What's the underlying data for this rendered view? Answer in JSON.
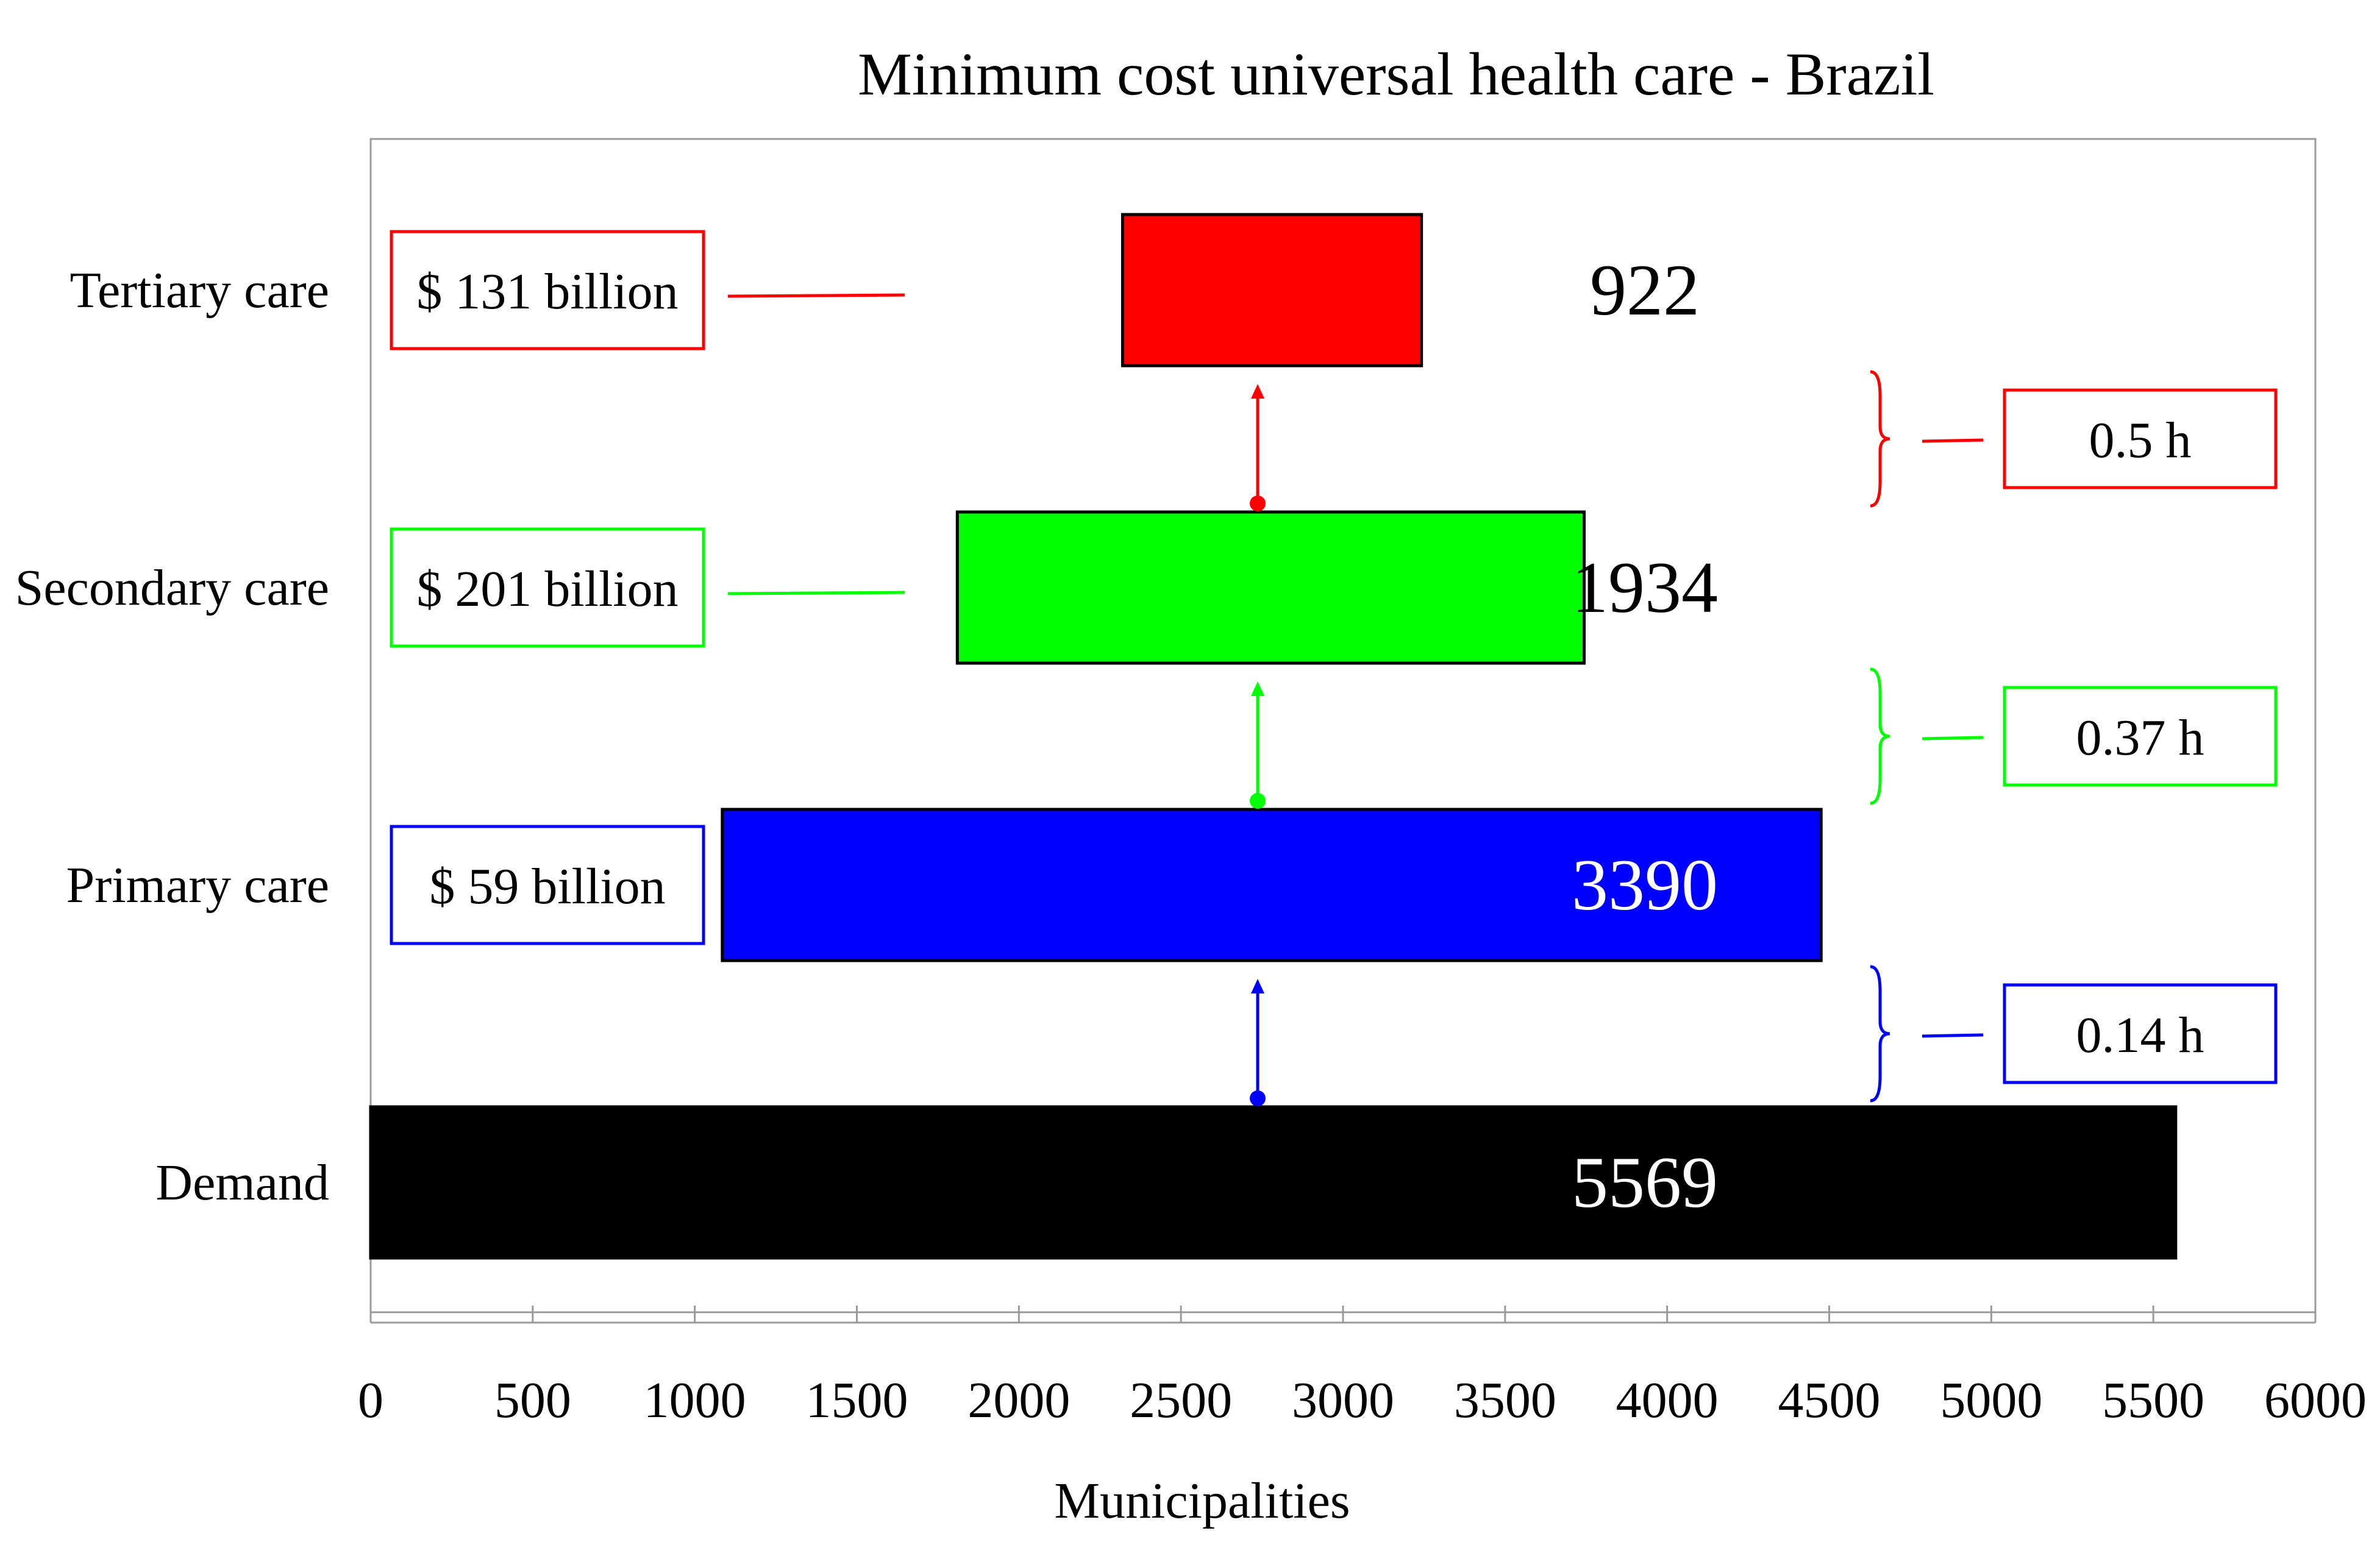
{
  "chart_data": {
    "type": "bar",
    "title": "Minimum cost universal health care - Brazil",
    "xlabel": "Municipalities",
    "ylabel": "",
    "xlim": [
      0,
      6000
    ],
    "x_ticks": [
      "0",
      "500",
      "1000",
      "1500",
      "2000",
      "2500",
      "3000",
      "3500",
      "4000",
      "4500",
      "5000",
      "5500",
      "6000"
    ],
    "categories": [
      "Tertiary care",
      "Secondary care",
      "Primary care",
      "Demand"
    ],
    "bars": [
      {
        "category": "Tertiary care",
        "start": 2320,
        "end": 3242,
        "value": 922,
        "label": "922",
        "color": "#ff0000",
        "label_color": "#000000"
      },
      {
        "category": "Secondary care",
        "start": 1810,
        "end": 3744,
        "value": 1934,
        "label": "1934",
        "color": "#00ff00",
        "label_color": "#000000"
      },
      {
        "category": "Primary care",
        "start": 1085,
        "end": 4475,
        "value": 3390,
        "label": "3390",
        "color": "#0000ff",
        "label_color": "#ffffff"
      },
      {
        "category": "Demand",
        "start": 0,
        "end": 5569,
        "value": 5569,
        "label": "5569",
        "color": "#000000",
        "label_color": "#ffffff"
      }
    ],
    "costs": [
      {
        "category": "Tertiary care",
        "label": "$ 131 billion",
        "color": "#ff0000"
      },
      {
        "category": "Secondary care",
        "label": "$ 201 billion",
        "color": "#00ff00"
      },
      {
        "category": "Primary care",
        "label": "$ 59 billion",
        "color": "#0000ff"
      }
    ],
    "travel_times": [
      {
        "between": [
          "Secondary care",
          "Tertiary care"
        ],
        "label": "0.5 h",
        "color": "#ff0000"
      },
      {
        "between": [
          "Primary care",
          "Secondary care"
        ],
        "label": "0.37 h",
        "color": "#00ff00"
      },
      {
        "between": [
          "Demand",
          "Primary care"
        ],
        "label": "0.14 h",
        "color": "#0000ff"
      }
    ],
    "grid": false,
    "legend": "none"
  }
}
